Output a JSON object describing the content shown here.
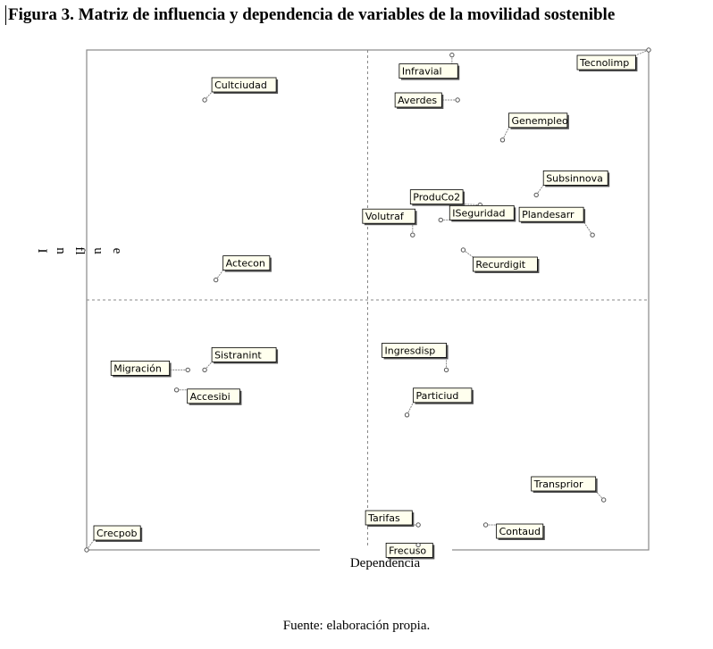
{
  "figure_title": "Figura 3. Matriz de influencia y dependencia de variables de la movilidad sostenible",
  "source_note": "Fuente: elaboración propia.",
  "colors": {
    "label_fill": "#ffffee",
    "label_border": "#000000",
    "grid": "#888888",
    "shadow": "#555555"
  },
  "chart_data": {
    "type": "scatter",
    "title": "",
    "xlabel": "Dependencia",
    "ylabel": "Influe",
    "ylabel_chars": [
      "I",
      "n",
      "fl",
      "u",
      "e"
    ],
    "xlim": [
      0,
      100
    ],
    "ylim": [
      0,
      100
    ],
    "grid": "quadrant-midlines",
    "points": [
      {
        "name": "Cultciudad",
        "x": 21,
        "y": 90
      },
      {
        "name": "Infravial",
        "x": 65,
        "y": 99
      },
      {
        "name": "Tecnolimp",
        "x": 100,
        "y": 100
      },
      {
        "name": "Averdes",
        "x": 66,
        "y": 90
      },
      {
        "name": "Genempleo",
        "x": 74,
        "y": 82
      },
      {
        "name": "Subsinnova",
        "x": 80,
        "y": 71
      },
      {
        "name": "ProduCo2",
        "x": 70,
        "y": 69
      },
      {
        "name": "Volutraf",
        "x": 58,
        "y": 63
      },
      {
        "name": "ISeguridad",
        "x": 63,
        "y": 66
      },
      {
        "name": "Plandesarr",
        "x": 90,
        "y": 63
      },
      {
        "name": "Recurdigit",
        "x": 67,
        "y": 60
      },
      {
        "name": "Actecon",
        "x": 23,
        "y": 54
      },
      {
        "name": "Sistranint",
        "x": 21,
        "y": 36
      },
      {
        "name": "Migración",
        "x": 18,
        "y": 36
      },
      {
        "name": "Accesibi",
        "x": 16,
        "y": 32
      },
      {
        "name": "Ingresdisp",
        "x": 64,
        "y": 36
      },
      {
        "name": "Particiud",
        "x": 57,
        "y": 27
      },
      {
        "name": "Transprior",
        "x": 92,
        "y": 10
      },
      {
        "name": "Tarifas",
        "x": 59,
        "y": 5
      },
      {
        "name": "Frecuso",
        "x": 59,
        "y": 1
      },
      {
        "name": "Contaud",
        "x": 71,
        "y": 5
      },
      {
        "name": "Crecpob",
        "x": 0,
        "y": 0
      }
    ]
  }
}
